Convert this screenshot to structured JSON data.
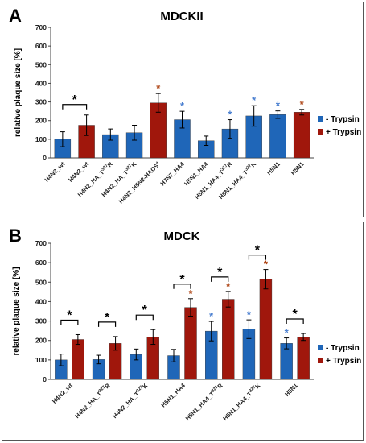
{
  "colors": {
    "minus_trypsin": "#1f66b8",
    "plus_trypsin": "#a0170c",
    "star_blue": "#4a7fd0",
    "star_brown": "#b0491a"
  },
  "chart_data": [
    {
      "panel": "A",
      "type": "bar",
      "title": "MDCKII",
      "ylabel": "relative plaque size [%]",
      "ylim": [
        0,
        700
      ],
      "yticks": [
        "0",
        "100",
        "200",
        "300",
        "400",
        "500",
        "600",
        "700"
      ],
      "grid": false,
      "legend_position": "right",
      "legend": [
        "- Trypsin",
        "+ Trypsin"
      ],
      "bars": [
        {
          "label": "H4N2_wt",
          "series": "- Trypsin",
          "value": 100,
          "error": 40
        },
        {
          "label": "H4N2_wt",
          "series": "+ Trypsin",
          "value": 175,
          "error": 55
        },
        {
          "label": "H4N2_HA_T327R",
          "series": "- Trypsin",
          "value": 125,
          "error": 30
        },
        {
          "label": "H4N2_HA_T327K",
          "series": "- Trypsin",
          "value": 135,
          "error": 40
        },
        {
          "label": "H4N2_H5N2-HACS+",
          "series": "+ Trypsin",
          "value": 295,
          "error": 50
        },
        {
          "label": "H7N7_HA4",
          "series": "- Trypsin",
          "value": 205,
          "error": 45
        },
        {
          "label": "H5N1_HA4",
          "series": "- Trypsin",
          "value": 92,
          "error": 25
        },
        {
          "label": "H5N1_HA4_T327R",
          "series": "- Trypsin",
          "value": 155,
          "error": 50
        },
        {
          "label": "H5N1_HA4_T327K",
          "series": "- Trypsin",
          "value": 225,
          "error": 55
        },
        {
          "label": "H5N1",
          "series": "- Trypsin",
          "value": 232,
          "error": 20
        },
        {
          "label": "H5N1",
          "series": "+ Trypsin",
          "value": 245,
          "error": 15
        }
      ],
      "annotations": [
        {
          "text": "*",
          "type": "bracket",
          "from_bar": 0,
          "to_bar": 1
        },
        {
          "text": "*",
          "bar": 4,
          "color": "brown"
        },
        {
          "text": "*",
          "bar": 5,
          "color": "blue"
        },
        {
          "text": "*",
          "bar": 7,
          "color": "blue"
        },
        {
          "text": "*",
          "bar": 8,
          "color": "blue"
        },
        {
          "text": "*",
          "bar": 9,
          "color": "blue"
        },
        {
          "text": "*",
          "bar": 10,
          "color": "brown"
        }
      ]
    },
    {
      "panel": "B",
      "type": "bar",
      "title": "MDCK",
      "ylabel": "relative plaque size [%]",
      "ylim": [
        0,
        700
      ],
      "yticks": [
        "0",
        "100",
        "200",
        "300",
        "400",
        "500",
        "600",
        "700"
      ],
      "grid": false,
      "legend_position": "right",
      "legend": [
        "- Trypsin",
        "+ Trypsin"
      ],
      "categories": [
        "H4N2_wt",
        "H4N2_HA_T327R",
        "H4N2_HA_T327K",
        "H5N1_HA4",
        "H5N1_HA4_T327R",
        "H5N1_HA4_T327K",
        "H5N1"
      ],
      "series": [
        {
          "name": "- Trypsin",
          "values": [
            100,
            102,
            128,
            122,
            248,
            258,
            185
          ],
          "errors": [
            30,
            22,
            28,
            32,
            50,
            48,
            28
          ]
        },
        {
          "name": "+ Trypsin",
          "values": [
            205,
            185,
            218,
            370,
            412,
            515,
            218
          ],
          "errors": [
            25,
            35,
            38,
            45,
            40,
            50,
            18
          ]
        }
      ],
      "annotations": [
        {
          "text": "*",
          "type": "bracket",
          "category": 0
        },
        {
          "text": "*",
          "type": "bracket",
          "category": 1
        },
        {
          "text": "*",
          "type": "bracket",
          "category": 2
        },
        {
          "text": "*",
          "type": "bracket",
          "category": 3
        },
        {
          "text": "*",
          "type": "bracket",
          "category": 4
        },
        {
          "text": "*",
          "type": "bracket",
          "category": 5
        },
        {
          "text": "*",
          "type": "bracket",
          "category": 6
        },
        {
          "text": "*",
          "category": 3,
          "series": 1,
          "color": "brown"
        },
        {
          "text": "*",
          "category": 4,
          "series": 0,
          "color": "blue"
        },
        {
          "text": "*",
          "category": 4,
          "series": 1,
          "color": "brown"
        },
        {
          "text": "*",
          "category": 5,
          "series": 0,
          "color": "blue"
        },
        {
          "text": "*",
          "category": 5,
          "series": 1,
          "color": "brown"
        },
        {
          "text": "*",
          "category": 6,
          "series": 0,
          "color": "blue"
        }
      ]
    }
  ]
}
